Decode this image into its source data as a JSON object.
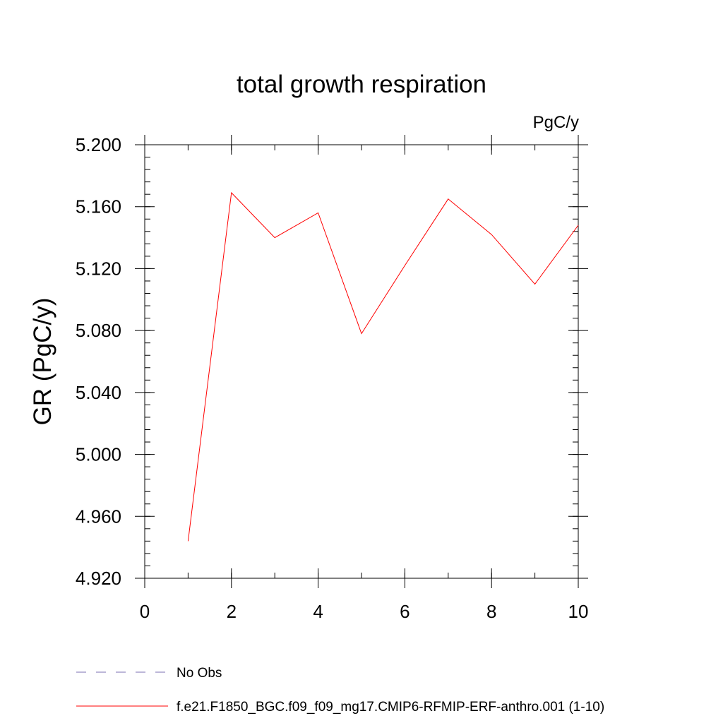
{
  "chart_data": {
    "type": "line",
    "title": "total growth respiration",
    "units_label": "PgC/y",
    "xlabel": "",
    "ylabel": "GR  (PgC/y)",
    "xlim": [
      0,
      10
    ],
    "ylim": [
      4.92,
      5.2
    ],
    "x_ticks": [
      0,
      2,
      4,
      6,
      8,
      10
    ],
    "x_tick_labels": [
      "0",
      "2",
      "4",
      "6",
      "8",
      "10"
    ],
    "y_ticks": [
      4.92,
      4.96,
      5.0,
      5.04,
      5.08,
      5.12,
      5.16,
      5.2
    ],
    "y_tick_labels": [
      "4.920",
      "4.960",
      "5.000",
      "5.040",
      "5.080",
      "5.120",
      "5.160",
      "5.200"
    ],
    "x_minor_step": 1,
    "y_minor_step": 0.008,
    "grid": false,
    "legend_position": "bottom-left",
    "series": [
      {
        "name": "f.e21.F1850_BGC.f09_f09_mg17.CMIP6-RFMIP-ERF-anthro.001 (1-10)",
        "color": "#ff0000",
        "style": "solid",
        "x": [
          1,
          2,
          3,
          4,
          5,
          6,
          7,
          8,
          9,
          10
        ],
        "values": [
          4.944,
          5.169,
          5.14,
          5.156,
          5.078,
          5.122,
          5.165,
          5.142,
          5.11,
          5.148
        ]
      }
    ],
    "legend": [
      {
        "label": "No Obs",
        "color": "#7b6fb0",
        "style": "dashed"
      },
      {
        "label": "f.e21.F1850_BGC.f09_f09_mg17.CMIP6-RFMIP-ERF-anthro.001 (1-10)",
        "color": "#ff0000",
        "style": "solid"
      }
    ]
  }
}
